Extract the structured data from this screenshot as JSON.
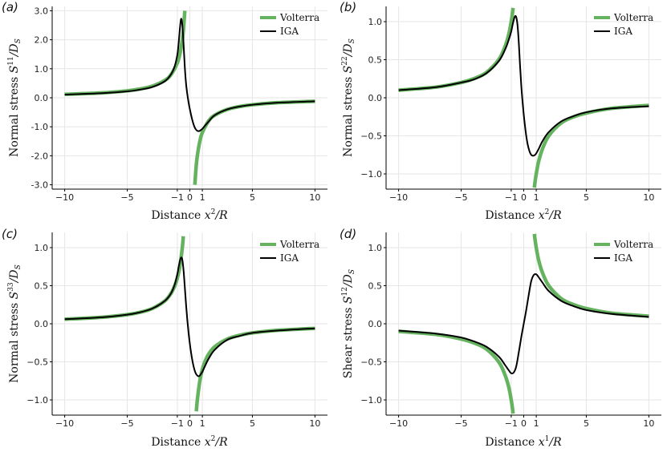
{
  "figure": {
    "colors": {
      "volterra": "#66b35f",
      "iga": "#000000",
      "grid": "#e6e6e6",
      "axis": "#000000"
    }
  },
  "chart_data": [
    {
      "type": "line",
      "panel_label": "(a)",
      "ylabel": "Normal stress S^11/D_S",
      "ylabel_parts": {
        "pre": "Normal stress ",
        "var": "S",
        "sup": "11",
        "post": "/D",
        "sub": "S"
      },
      "xlabel": "Distance x^2/R",
      "xlabel_parts": {
        "pre": "Distance ",
        "var": "x",
        "sup": "2",
        "post": "/R"
      },
      "xlim": [
        -11,
        11
      ],
      "ylim": [
        -3.15,
        3.15
      ],
      "xticks": [
        -10,
        -5,
        -1,
        0,
        1,
        5,
        10
      ],
      "xticklabels": [
        "−10",
        "−5",
        "−1",
        "0",
        "1",
        "5",
        "10"
      ],
      "yticks": [
        -3,
        -2,
        -1,
        0,
        1,
        2,
        3
      ],
      "yticklabels": [
        "-3.0",
        "-2.0",
        "-1.0",
        "0.0",
        "1.0",
        "2.0",
        "3.0"
      ],
      "legend": {
        "position": "top-right",
        "entries": [
          "Volterra",
          "IGA"
        ]
      },
      "series": [
        {
          "name": "Volterra",
          "kind": "hyperbola",
          "coefficient": -1.2,
          "x": [
            -10,
            -7,
            -5,
            -4,
            -3,
            -2,
            -1.5,
            -1,
            -0.8,
            -0.6,
            -0.5,
            -0.4,
            0.4,
            0.5,
            0.6,
            0.8,
            1,
            1.5,
            2,
            3,
            4,
            5,
            7,
            10
          ],
          "values": [
            0.12,
            0.17,
            0.24,
            0.3,
            0.4,
            0.6,
            0.8,
            1.2,
            1.5,
            2.0,
            2.4,
            3.0,
            -3.0,
            -2.4,
            -2.0,
            -1.5,
            -1.2,
            -0.8,
            -0.6,
            -0.4,
            -0.3,
            -0.24,
            -0.17,
            -0.12
          ]
        },
        {
          "name": "IGA",
          "kind": "regularized",
          "x": [
            -10,
            -7,
            -5,
            -4,
            -3,
            -2,
            -1.5,
            -1.2,
            -1,
            -0.9,
            -0.8,
            -0.7,
            -0.6,
            -0.5,
            -0.4,
            -0.3,
            -0.2,
            -0.1,
            0,
            0.1,
            0.2,
            0.3,
            0.4,
            0.5,
            0.6,
            0.7,
            0.8,
            1,
            1.2,
            1.5,
            2,
            3,
            4,
            5,
            7,
            10
          ],
          "values": [
            0.11,
            0.16,
            0.22,
            0.28,
            0.37,
            0.57,
            0.81,
            1.1,
            1.48,
            1.85,
            2.35,
            2.72,
            2.5,
            1.85,
            1.05,
            0.48,
            0.12,
            -0.16,
            -0.39,
            -0.59,
            -0.77,
            -0.92,
            -1.03,
            -1.1,
            -1.14,
            -1.15,
            -1.14,
            -1.07,
            -0.97,
            -0.82,
            -0.6,
            -0.4,
            -0.3,
            -0.24,
            -0.17,
            -0.12
          ]
        }
      ]
    },
    {
      "type": "line",
      "panel_label": "(b)",
      "ylabel": "Normal stress S^22/D_S",
      "ylabel_parts": {
        "pre": "Normal stress ",
        "var": "S",
        "sup": "22",
        "post": "/D",
        "sub": "S"
      },
      "xlabel": "Distance x^2/R",
      "xlabel_parts": {
        "pre": "Distance ",
        "var": "x",
        "sup": "2",
        "post": "/R"
      },
      "xlim": [
        -11,
        11
      ],
      "ylim": [
        -1.2,
        1.2
      ],
      "xticks": [
        -10,
        -5,
        -1,
        0,
        1,
        5,
        10
      ],
      "xticklabels": [
        "−10",
        "−5",
        "−1",
        "0",
        "1",
        "5",
        "10"
      ],
      "yticks": [
        -1,
        -0.5,
        0,
        0.5,
        1
      ],
      "yticklabels": [
        "−1.0",
        "−0.5",
        "0.0",
        "0.5",
        "1.0"
      ],
      "legend": {
        "position": "top-right",
        "entries": [
          "Volterra",
          "IGA"
        ]
      },
      "series": [
        {
          "name": "Volterra",
          "kind": "hyperbola",
          "coefficient": -1.0,
          "x": [
            -10,
            -7,
            -5,
            -4,
            -3,
            -2,
            -1.5,
            -1.2,
            -1,
            -0.9,
            -0.85,
            0.85,
            0.9,
            1,
            1.2,
            1.5,
            2,
            3,
            4,
            5,
            7,
            10
          ],
          "values": [
            0.1,
            0.14,
            0.2,
            0.25,
            0.33,
            0.5,
            0.67,
            0.83,
            1.0,
            1.11,
            1.18,
            -1.18,
            -1.11,
            -1.0,
            -0.83,
            -0.67,
            -0.5,
            -0.33,
            -0.25,
            -0.2,
            -0.14,
            -0.1
          ]
        },
        {
          "name": "IGA",
          "kind": "regularized",
          "x": [
            -10,
            -7,
            -5,
            -4,
            -3,
            -2,
            -1.5,
            -1.2,
            -1,
            -0.9,
            -0.8,
            -0.7,
            -0.6,
            -0.5,
            -0.4,
            -0.3,
            -0.2,
            -0.1,
            0,
            0.1,
            0.2,
            0.3,
            0.4,
            0.5,
            0.6,
            0.7,
            0.8,
            0.9,
            1,
            1.2,
            1.5,
            2,
            3,
            4,
            5,
            7,
            10
          ],
          "values": [
            0.1,
            0.14,
            0.2,
            0.24,
            0.32,
            0.48,
            0.63,
            0.76,
            0.87,
            0.95,
            1.02,
            1.07,
            1.06,
            0.96,
            0.74,
            0.44,
            0.17,
            -0.04,
            -0.22,
            -0.37,
            -0.5,
            -0.6,
            -0.67,
            -0.72,
            -0.75,
            -0.76,
            -0.76,
            -0.75,
            -0.73,
            -0.67,
            -0.57,
            -0.45,
            -0.31,
            -0.24,
            -0.19,
            -0.14,
            -0.11
          ]
        }
      ]
    },
    {
      "type": "line",
      "panel_label": "(c)",
      "ylabel": "Normal stress S^33/D_S",
      "ylabel_parts": {
        "pre": "Normal stress ",
        "var": "S",
        "sup": "33",
        "post": "/D",
        "sub": "S"
      },
      "xlabel": "Distance x^2/R",
      "xlabel_parts": {
        "pre": "Distance ",
        "var": "x",
        "sup": "2",
        "post": "/R"
      },
      "xlim": [
        -11,
        11
      ],
      "ylim": [
        -1.2,
        1.2
      ],
      "xticks": [
        -10,
        -5,
        -1,
        0,
        1,
        5,
        10
      ],
      "xticklabels": [
        "−10",
        "−5",
        "−1",
        "0",
        "1",
        "5",
        "10"
      ],
      "yticks": [
        -1,
        -0.5,
        0,
        0.5,
        1
      ],
      "yticklabels": [
        "−1.0",
        "−0.5",
        "0.0",
        "0.5",
        "1.0"
      ],
      "legend": {
        "position": "top-right",
        "entries": [
          "Volterra",
          "IGA"
        ]
      },
      "series": [
        {
          "name": "Volterra",
          "kind": "hyperbola",
          "coefficient": -0.6,
          "x": [
            -10,
            -7,
            -5,
            -4,
            -3,
            -2,
            -1.5,
            -1.2,
            -1,
            -0.8,
            -0.6,
            -0.52,
            0.52,
            0.6,
            0.8,
            1,
            1.2,
            1.5,
            2,
            3,
            4,
            5,
            7,
            10
          ],
          "values": [
            0.06,
            0.086,
            0.12,
            0.15,
            0.2,
            0.3,
            0.4,
            0.5,
            0.6,
            0.75,
            1.0,
            1.15,
            -1.15,
            -1.0,
            -0.75,
            -0.6,
            -0.5,
            -0.4,
            -0.3,
            -0.2,
            -0.15,
            -0.12,
            -0.086,
            -0.06
          ]
        },
        {
          "name": "IGA",
          "kind": "regularized",
          "x": [
            -10,
            -7,
            -5,
            -4,
            -3,
            -2,
            -1.5,
            -1.2,
            -1,
            -0.9,
            -0.8,
            -0.7,
            -0.6,
            -0.5,
            -0.4,
            -0.3,
            -0.2,
            -0.1,
            0,
            0.1,
            0.2,
            0.3,
            0.4,
            0.5,
            0.6,
            0.7,
            0.8,
            1,
            1.2,
            1.5,
            2,
            3,
            4,
            5,
            7,
            10
          ],
          "values": [
            0.06,
            0.085,
            0.12,
            0.15,
            0.2,
            0.3,
            0.4,
            0.52,
            0.65,
            0.74,
            0.82,
            0.87,
            0.84,
            0.7,
            0.48,
            0.25,
            0.05,
            -0.12,
            -0.26,
            -0.38,
            -0.48,
            -0.56,
            -0.62,
            -0.66,
            -0.68,
            -0.69,
            -0.68,
            -0.63,
            -0.56,
            -0.46,
            -0.34,
            -0.21,
            -0.16,
            -0.12,
            -0.09,
            -0.06
          ]
        }
      ]
    },
    {
      "type": "line",
      "panel_label": "(d)",
      "ylabel": "Shear stress S^12/D_S",
      "ylabel_parts": {
        "pre": "Shear stress ",
        "var": "S",
        "sup": "12",
        "post": "/D",
        "sub": "S"
      },
      "xlabel": "Distance x^1/R",
      "xlabel_parts": {
        "pre": "Distance ",
        "var": "x",
        "sup": "1",
        "post": "/R"
      },
      "xlim": [
        -11,
        11
      ],
      "ylim": [
        -1.2,
        1.2
      ],
      "xticks": [
        -10,
        -5,
        -1,
        0,
        1,
        5,
        10
      ],
      "xticklabels": [
        "−10",
        "−5",
        "−1",
        "0",
        "1",
        "5",
        "10"
      ],
      "yticks": [
        -1,
        -0.5,
        0,
        0.5,
        1
      ],
      "yticklabels": [
        "−1.0",
        "−0.5",
        "0.0",
        "0.5",
        "1.0"
      ],
      "legend": {
        "position": "top-right",
        "entries": [
          "Volterra",
          "IGA"
        ]
      },
      "series": [
        {
          "name": "Volterra",
          "kind": "hyperbola",
          "coefficient": 1.0,
          "x": [
            -10,
            -7,
            -5,
            -4,
            -3,
            -2,
            -1.5,
            -1.2,
            -1,
            -0.9,
            -0.85,
            0.85,
            0.9,
            1,
            1.2,
            1.5,
            2,
            3,
            4,
            5,
            7,
            10
          ],
          "values": [
            -0.1,
            -0.14,
            -0.2,
            -0.25,
            -0.33,
            -0.5,
            -0.67,
            -0.83,
            -1.0,
            -1.11,
            -1.18,
            1.18,
            1.11,
            1.0,
            0.83,
            0.67,
            0.5,
            0.33,
            0.25,
            0.2,
            0.14,
            0.1
          ]
        },
        {
          "name": "IGA",
          "kind": "regularized",
          "x": [
            -10,
            -7,
            -5,
            -4,
            -3,
            -2,
            -1.5,
            -1.2,
            -1,
            -0.8,
            -0.6,
            -0.4,
            -0.2,
            0,
            0.2,
            0.4,
            0.6,
            0.8,
            1,
            1.2,
            1.5,
            2,
            3,
            4,
            5,
            7,
            10
          ],
          "values": [
            -0.09,
            -0.13,
            -0.18,
            -0.23,
            -0.3,
            -0.43,
            -0.54,
            -0.61,
            -0.65,
            -0.64,
            -0.56,
            -0.38,
            -0.18,
            0.0,
            0.18,
            0.38,
            0.56,
            0.64,
            0.65,
            0.61,
            0.54,
            0.43,
            0.3,
            0.23,
            0.18,
            0.13,
            0.09
          ]
        }
      ]
    }
  ]
}
